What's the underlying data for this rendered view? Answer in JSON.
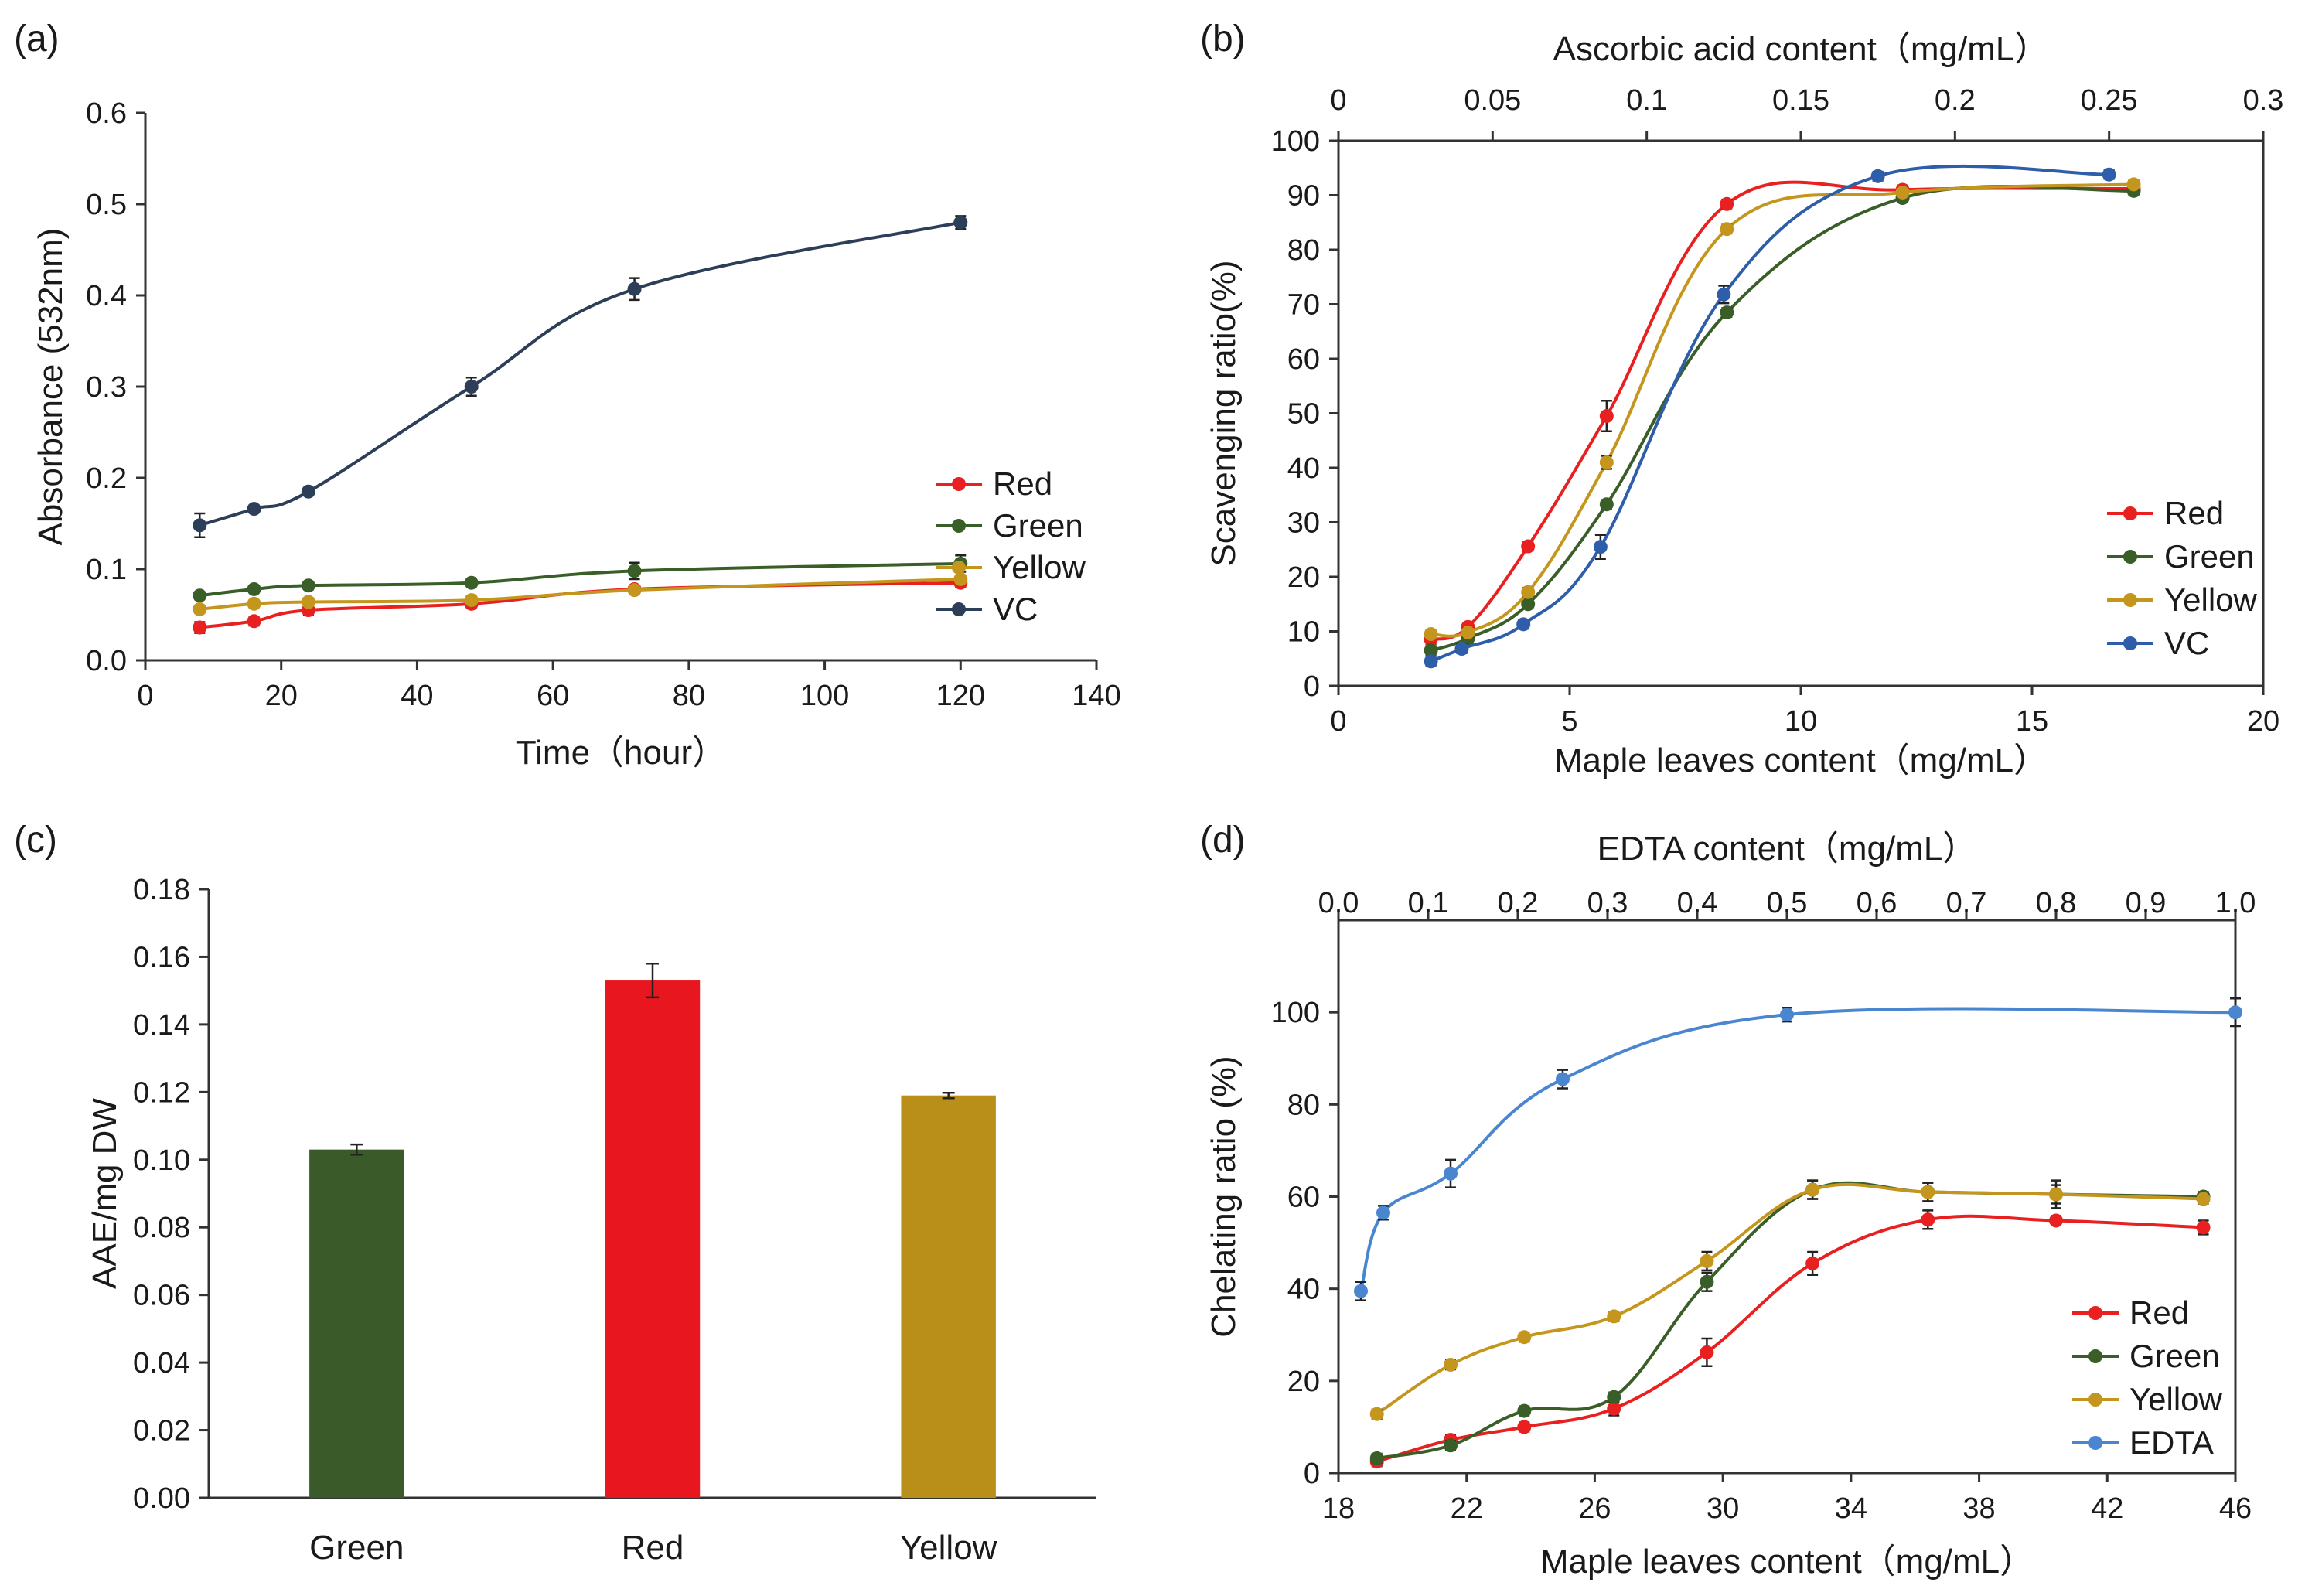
{
  "chart_data": [
    {
      "panel_label": "(a)",
      "type": "line",
      "title": "",
      "xlabel": "Time（hour）",
      "ylabel": "Absorbance (532nm)",
      "xlim": [
        0,
        140
      ],
      "ylim": [
        0,
        0.6
      ],
      "xticks": [
        "0",
        "20",
        "40",
        "60",
        "80",
        "100",
        "120",
        "140"
      ],
      "yticks": [
        "0.0",
        "0.1",
        "0.2",
        "0.3",
        "0.4",
        "0.5",
        "0.6"
      ],
      "legend_position": "right",
      "series": [
        {
          "name": "Red",
          "color": "#e82020",
          "x": [
            8,
            16,
            24,
            48,
            72,
            120
          ],
          "values": [
            0.036,
            0.043,
            0.055,
            0.062,
            0.078,
            0.085
          ],
          "errors": [
            0.006,
            0.005,
            0.005,
            0.005,
            0.004,
            0.005
          ]
        },
        {
          "name": "Green",
          "color": "#3a5e28",
          "x": [
            8,
            16,
            24,
            48,
            72,
            120
          ],
          "values": [
            0.071,
            0.078,
            0.082,
            0.085,
            0.098,
            0.106
          ],
          "errors": [
            0.004,
            0.004,
            0.004,
            0.004,
            0.009,
            0.009
          ]
        },
        {
          "name": "Yellow",
          "color": "#c4961e",
          "x": [
            8,
            16,
            24,
            48,
            72,
            120
          ],
          "values": [
            0.056,
            0.062,
            0.064,
            0.066,
            0.077,
            0.089
          ],
          "errors": [
            0.004,
            0.004,
            0.004,
            0.004,
            0.004,
            0.004
          ]
        },
        {
          "name": "VC",
          "color": "#2c3e58",
          "x": [
            8,
            16,
            24,
            48,
            72,
            120
          ],
          "values": [
            0.148,
            0.166,
            0.185,
            0.3,
            0.407,
            0.48
          ],
          "errors": [
            0.013,
            0.004,
            0.004,
            0.01,
            0.012,
            0.007
          ]
        }
      ]
    },
    {
      "panel_label": "(b)",
      "type": "line",
      "title": "",
      "xlabel": "Maple leaves content（mg/mL）",
      "ylabel": "Scavenging ratio(%)",
      "x2label": "Ascorbic acid content（mg/mL）",
      "xlim": [
        0,
        20
      ],
      "ylim": [
        0,
        100
      ],
      "x2lim": [
        0,
        0.3
      ],
      "xticks": [
        "0",
        "5",
        "10",
        "15",
        "20"
      ],
      "yticks": [
        "0",
        "10",
        "20",
        "30",
        "40",
        "50",
        "60",
        "70",
        "80",
        "90",
        "100"
      ],
      "x2ticks": [
        "0",
        "0.05",
        "0.1",
        "0.15",
        "0.2",
        "0.25",
        "0.3"
      ],
      "legend_position": "bottom-right",
      "series": [
        {
          "name": "Red",
          "color": "#e82020",
          "axis": "bottom",
          "x": [
            2,
            2.8,
            4.1,
            5.8,
            8.4,
            12.2,
            17.2
          ],
          "values": [
            8.5,
            10.8,
            25.6,
            49.5,
            88.4,
            91,
            91.2
          ],
          "errors": [
            0.8,
            0.8,
            0.8,
            2.8,
            0.8,
            0.8,
            0.8
          ]
        },
        {
          "name": "Green",
          "color": "#3a5e28",
          "axis": "bottom",
          "x": [
            2,
            2.8,
            4.1,
            5.8,
            8.4,
            12.2,
            17.2
          ],
          "values": [
            6.5,
            8.7,
            15,
            33.3,
            68.5,
            89.5,
            90.8
          ],
          "errors": [
            0.8,
            0.8,
            0.8,
            0.8,
            0.8,
            0.8,
            0.8
          ]
        },
        {
          "name": "Yellow",
          "color": "#c4961e",
          "axis": "bottom",
          "x": [
            2,
            2.8,
            4.1,
            5.8,
            8.4,
            12.2,
            17.2
          ],
          "values": [
            9.5,
            9.8,
            17.2,
            41,
            83.8,
            90.5,
            92
          ],
          "errors": [
            0.8,
            0.8,
            0.8,
            1.2,
            0.8,
            0.8,
            0.8
          ]
        },
        {
          "name": "VC",
          "color": "#2e5eaa",
          "axis": "top",
          "x": [
            0.03,
            0.04,
            0.06,
            0.085,
            0.125,
            0.175,
            0.25
          ],
          "values": [
            4.5,
            6.8,
            11.3,
            25.5,
            71.8,
            93.5,
            93.8
          ],
          "errors": [
            0.8,
            0.8,
            0.8,
            2.2,
            1.6,
            0.8,
            0.8
          ]
        }
      ]
    },
    {
      "panel_label": "(c)",
      "type": "bar",
      "title": "",
      "xlabel": "",
      "ylabel": "AAE/mg DW",
      "ylim": [
        0,
        0.18
      ],
      "yticks": [
        "0.00",
        "0.02",
        "0.04",
        "0.06",
        "0.08",
        "0.10",
        "0.12",
        "0.14",
        "0.16",
        "0.18"
      ],
      "categories": [
        "Green",
        "Red",
        "Yellow"
      ],
      "values": [
        0.103,
        0.153,
        0.119
      ],
      "errors": [
        0.0015,
        0.005,
        0.0008
      ],
      "colors": [
        "#3b5a2a",
        "#e8161e",
        "#b98f1a"
      ]
    },
    {
      "panel_label": "(d)",
      "type": "line",
      "title": "",
      "xlabel": "Maple leaves content（mg/mL）",
      "ylabel": "Chelating ratio (%)",
      "x2label": "EDTA content（mg/mL）",
      "xlim": [
        18,
        46
      ],
      "ylim": [
        0,
        120
      ],
      "x2lim": [
        0,
        1
      ],
      "xticks": [
        "18",
        "22",
        "26",
        "30",
        "34",
        "38",
        "42",
        "46"
      ],
      "yticks": [
        "0",
        "20",
        "40",
        "60",
        "80",
        "100"
      ],
      "x2ticks": [
        "0.0",
        "0.1",
        "0.2",
        "0.3",
        "0.4",
        "0.5",
        "0.6",
        "0.7",
        "0.8",
        "0.9",
        "1.0"
      ],
      "legend_position": "bottom-right",
      "series": [
        {
          "name": "Red",
          "color": "#e82020",
          "axis": "bottom",
          "x": [
            19.2,
            21.5,
            23.8,
            26.6,
            29.5,
            32.8,
            36.4,
            40.4,
            45
          ],
          "values": [
            2.5,
            7.2,
            10,
            14,
            26.2,
            45.5,
            55,
            54.8,
            53.3
          ],
          "errors": [
            1,
            1,
            1,
            1.5,
            3,
            2.5,
            2,
            1,
            1.5
          ]
        },
        {
          "name": "Green",
          "color": "#3a5e28",
          "axis": "bottom",
          "x": [
            19.2,
            21.5,
            23.8,
            26.6,
            29.5,
            32.8,
            36.4,
            40.4,
            45
          ],
          "values": [
            3.2,
            6,
            13.5,
            16.5,
            41.5,
            61.5,
            61,
            60.5,
            60
          ],
          "errors": [
            1,
            1,
            1,
            1,
            2,
            2,
            2,
            2,
            1
          ]
        },
        {
          "name": "Yellow",
          "color": "#c4961e",
          "axis": "bottom",
          "x": [
            19.2,
            21.5,
            23.8,
            26.6,
            29.5,
            32.8,
            36.4,
            40.4,
            45
          ],
          "values": [
            12.8,
            23.5,
            29.5,
            34,
            46,
            61.5,
            61,
            60.5,
            59.5
          ],
          "errors": [
            1,
            1,
            1,
            1,
            2,
            2,
            2,
            3,
            1
          ]
        },
        {
          "name": "EDTA",
          "color": "#4a86d0",
          "axis": "top",
          "x": [
            0.025,
            0.05,
            0.125,
            0.25,
            0.5,
            1.0
          ],
          "values": [
            39.5,
            56.5,
            65,
            85.5,
            99.5,
            100
          ],
          "errors": [
            2,
            1.5,
            3,
            2,
            1.5,
            3
          ]
        }
      ]
    }
  ]
}
